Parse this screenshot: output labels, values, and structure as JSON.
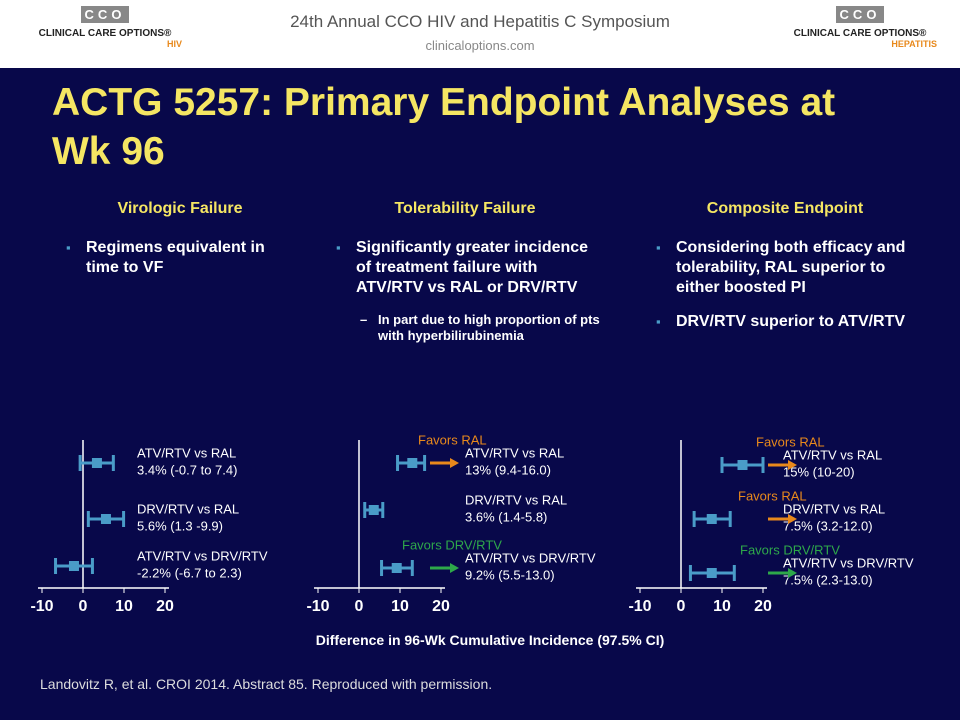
{
  "header": {
    "title": "24th Annual CCO HIV and Hepatitis C Symposium",
    "url": "clinicaloptions.com",
    "logo_left": {
      "mark": "CCO",
      "name": "CLINICAL CARE OPTIONS®",
      "program": "HIV"
    },
    "logo_right": {
      "mark": "CCO",
      "name": "CLINICAL CARE OPTIONS®",
      "program": "HEPATITIS"
    }
  },
  "title": "ACTG 5257: Primary Endpoint Analyses at Wk 96",
  "columns": [
    {
      "heading": "Virologic Failure",
      "bullets": [
        {
          "text": "Regimens equivalent in time to VF",
          "subbullets": []
        }
      ]
    },
    {
      "heading": "Tolerability Failure",
      "bullets": [
        {
          "text": "Significantly greater incidence of treatment failure with ATV/RTV vs RAL or DRV/RTV",
          "subbullets": [
            "In part due to high proportion of pts with hyperbilirubinemia"
          ]
        }
      ]
    },
    {
      "heading": "Composite Endpoint",
      "bullets": [
        {
          "text": "Considering both efficacy and tolerability, RAL superior to either boosted PI",
          "subbullets": []
        },
        {
          "text": "DRV/RTV superior to ATV/RTV",
          "subbullets": []
        }
      ]
    }
  ],
  "chart_data": [
    {
      "type": "forest",
      "color": "#4a9cc8",
      "categories": [
        "ATV/RTV vs RAL",
        "DRV/RTV vs RAL",
        "ATV/RTV vs DRV/RTV"
      ],
      "values": [
        3.4,
        5.6,
        -2.2
      ],
      "lower": [
        -0.7,
        1.3,
        -6.7
      ],
      "upper": [
        7.4,
        9.9,
        2.3
      ],
      "value_labels": [
        "3.4% (-0.7 to 7.4)",
        "5.6% (1.3 -9.9)",
        "-2.2% (-6.7 to 2.3)"
      ],
      "annotations": [
        null,
        null,
        null
      ],
      "annotation_colors": [
        null,
        null,
        null
      ],
      "xlim": [
        -10,
        20
      ],
      "xticks": [
        -10,
        0,
        10,
        20
      ]
    },
    {
      "type": "forest",
      "color": "#4a9cc8",
      "categories": [
        "ATV/RTV vs RAL",
        "DRV/RTV vs RAL",
        "ATV/RTV vs DRV/RTV"
      ],
      "values": [
        13,
        3.6,
        9.2
      ],
      "lower": [
        9.4,
        1.4,
        5.5
      ],
      "upper": [
        16,
        5.8,
        13
      ],
      "value_labels": [
        "13% (9.4-16.0)",
        "3.6% (1.4-5.8)",
        "9.2% (5.5-13.0)"
      ],
      "annotations": [
        "Favors RAL",
        null,
        "Favors DRV/RTV"
      ],
      "annotation_colors": [
        "#e8891c",
        null,
        "#2ea84a"
      ],
      "xlim": [
        -10,
        20
      ],
      "xticks": [
        -10,
        0,
        10,
        20
      ]
    },
    {
      "type": "forest",
      "color": "#4a9cc8",
      "categories": [
        "ATV/RTV vs RAL",
        "DRV/RTV vs RAL",
        "ATV/RTV vs DRV/RTV"
      ],
      "values": [
        15,
        7.5,
        7.5
      ],
      "lower": [
        10,
        3.2,
        2.3
      ],
      "upper": [
        20,
        12,
        13
      ],
      "value_labels": [
        "15% (10-20)",
        "7.5% (3.2-12.0)",
        "7.5% (2.3-13.0)"
      ],
      "annotations": [
        "Favors RAL",
        "Favors RAL",
        "Favors DRV/RTV"
      ],
      "annotation_colors": [
        "#e8891c",
        "#e8891c",
        "#2ea84a"
      ],
      "xlim": [
        -10,
        20
      ],
      "xticks": [
        -10,
        0,
        10,
        20
      ]
    }
  ],
  "x_axis_label": "Difference in 96-Wk Cumulative Incidence (97.5% CI)",
  "citation": "Landovitz R, et al. CROI 2014. Abstract 85. Reproduced with permission."
}
